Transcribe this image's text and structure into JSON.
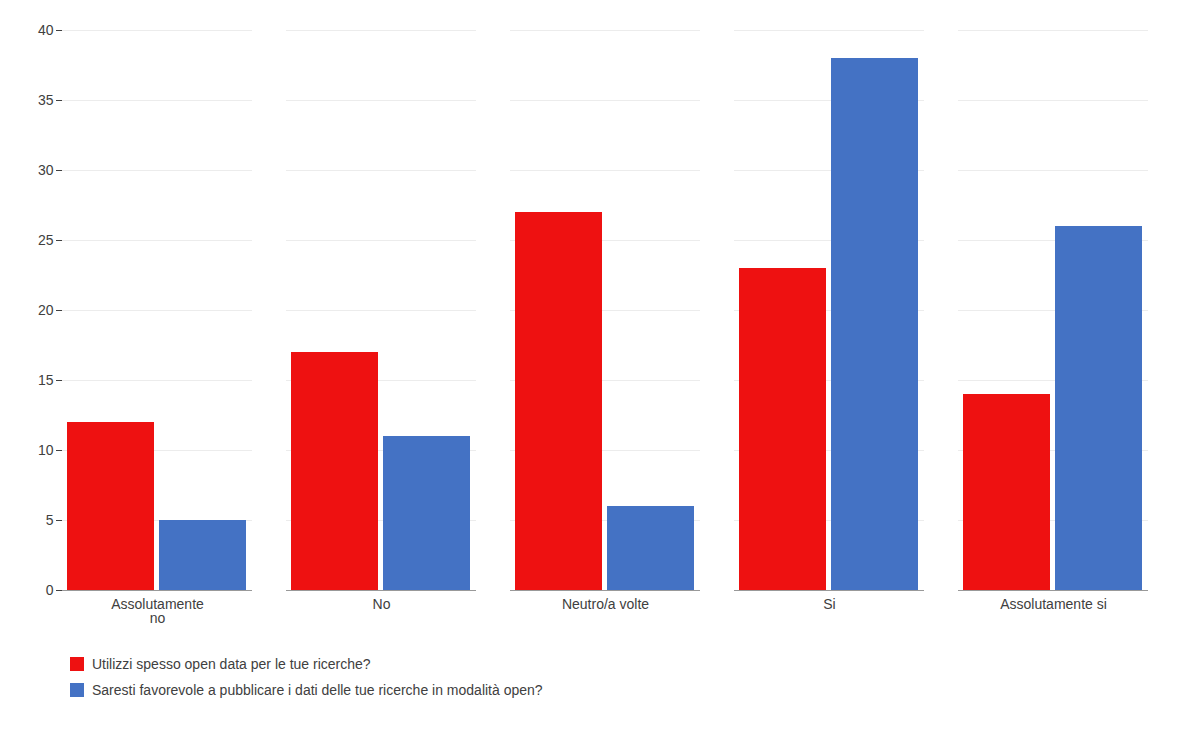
{
  "chart_data": {
    "type": "bar",
    "categories": [
      "Assolutamente\nno",
      "No",
      "Neutro/a volte",
      "Si",
      "Assolutamente si"
    ],
    "series": [
      {
        "name": "Utilizzi spesso open data per le tue ricerche?",
        "color": "#EE1111",
        "values": [
          12,
          17,
          27,
          23,
          14
        ]
      },
      {
        "name": "Saresti favorevole a pubblicare i dati delle tue ricerche in modalità open?",
        "color": "#4472C4",
        "values": [
          5,
          11,
          6,
          38,
          26
        ]
      }
    ],
    "ylim": [
      0,
      40
    ],
    "yticks": [
      0,
      5,
      10,
      15,
      20,
      25,
      30,
      35,
      40
    ],
    "grid": true,
    "legend": "bottom"
  }
}
